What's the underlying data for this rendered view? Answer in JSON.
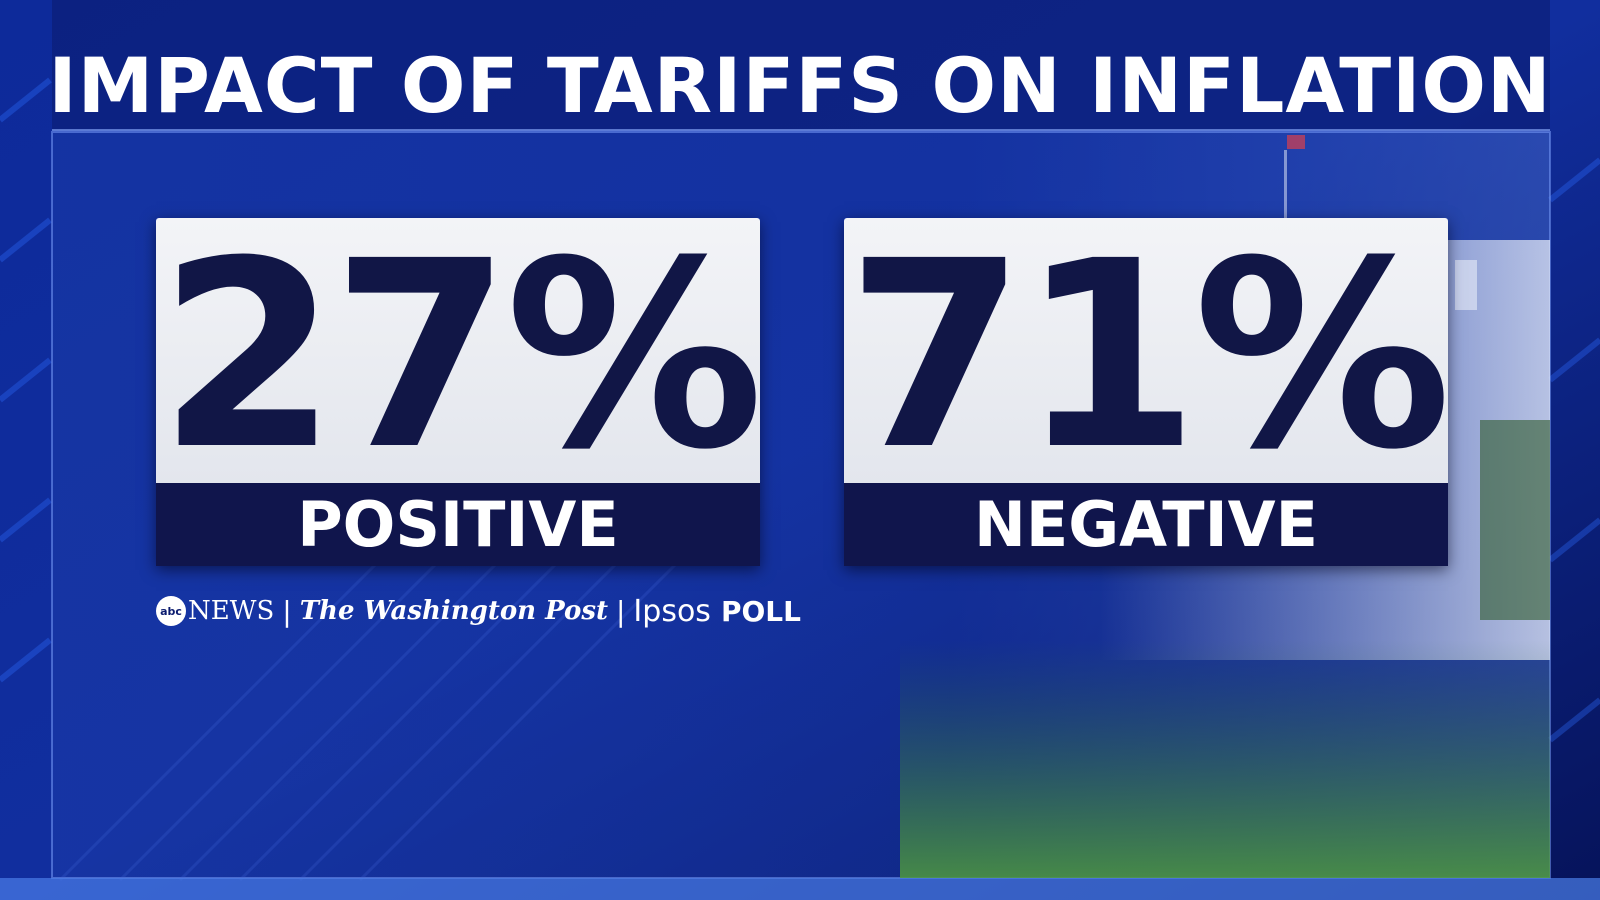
{
  "title": "IMPACT OF TARIFFS ON INFLATION",
  "results": [
    {
      "value": "27%",
      "label": "POSITIVE"
    },
    {
      "value": "71%",
      "label": "NEGATIVE"
    }
  ],
  "source": {
    "abc_mark": "abc",
    "news": "NEWS",
    "separator": "|",
    "washington_post": "The Washington Post",
    "ipsos": "Ipsos",
    "poll": "POLL"
  },
  "colors": {
    "background": "#0a1a6e",
    "card_light": "#eceef3",
    "card_dark": "#10154c",
    "number_text": "#111646",
    "label_text": "#ffffff"
  }
}
